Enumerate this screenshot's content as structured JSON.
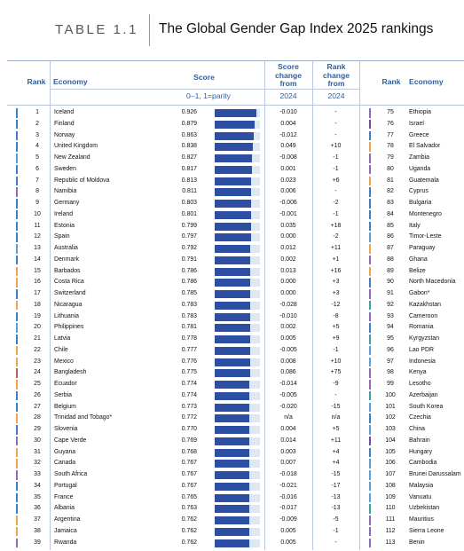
{
  "header": {
    "table_number": "TABLE 1.1",
    "title": "The Global Gender Gap Index 2025 rankings"
  },
  "columns": {
    "rank": "Rank",
    "economy": "Economy",
    "score": "Score",
    "score_change": "Score change from",
    "rank_change": "Rank change from",
    "score_sub": "0–1, 1=parity",
    "year1": "2024",
    "year2": "2024",
    "rank_right": "Rank",
    "economy_right": "Economy"
  },
  "colors": {
    "accent": "#2e5f9e",
    "bar": "#2c4fa3",
    "europe": "#3b7fc4",
    "east_asia": "#5aa0d8",
    "latam": "#f0a24a",
    "ssa": "#8d6bb5",
    "mena": "#7a4a9a",
    "ca_asia": "#3aa5a0",
    "south_asia": "#c25b5b"
  },
  "left_rows": [
    {
      "rank": "1",
      "economy": "Iceland",
      "score": "0.926",
      "sc": "-0.010",
      "rc": "-",
      "score_value": 0.926,
      "region": "europe"
    },
    {
      "rank": "2",
      "economy": "Finland",
      "score": "0.879",
      "sc": "0.004",
      "rc": "-",
      "score_value": 0.879,
      "region": "europe"
    },
    {
      "rank": "3",
      "economy": "Norway",
      "score": "0.863",
      "sc": "-0.012",
      "rc": "-",
      "score_value": 0.863,
      "region": "europe"
    },
    {
      "rank": "4",
      "economy": "United Kingdom",
      "score": "0.838",
      "sc": "0.049",
      "rc": "+10",
      "score_value": 0.838,
      "region": "europe"
    },
    {
      "rank": "5",
      "economy": "New Zealand",
      "score": "0.827",
      "sc": "-0.008",
      "rc": "-1",
      "score_value": 0.827,
      "region": "east_asia"
    },
    {
      "rank": "6",
      "economy": "Sweden",
      "score": "0.817",
      "sc": "0.001",
      "rc": "-1",
      "score_value": 0.817,
      "region": "europe"
    },
    {
      "rank": "7",
      "economy": "Republic of Moldova",
      "score": "0.813",
      "sc": "0.023",
      "rc": "+6",
      "score_value": 0.813,
      "region": "europe"
    },
    {
      "rank": "8",
      "economy": "Namibia",
      "score": "0.811",
      "sc": "0.006",
      "rc": "-",
      "score_value": 0.811,
      "region": "ssa"
    },
    {
      "rank": "9",
      "economy": "Germany",
      "score": "0.803",
      "sc": "-0.006",
      "rc": "-2",
      "score_value": 0.803,
      "region": "europe"
    },
    {
      "rank": "10",
      "economy": "Ireland",
      "score": "0.801",
      "sc": "-0.001",
      "rc": "-1",
      "score_value": 0.801,
      "region": "europe"
    },
    {
      "rank": "11",
      "economy": "Estonia",
      "score": "0.799",
      "sc": "0.035",
      "rc": "+18",
      "score_value": 0.799,
      "region": "europe"
    },
    {
      "rank": "12",
      "economy": "Spain",
      "score": "0.797",
      "sc": "0.000",
      "rc": "-2",
      "score_value": 0.797,
      "region": "europe"
    },
    {
      "rank": "13",
      "economy": "Australia",
      "score": "0.792",
      "sc": "0.012",
      "rc": "+11",
      "score_value": 0.792,
      "region": "east_asia"
    },
    {
      "rank": "14",
      "economy": "Denmark",
      "score": "0.791",
      "sc": "0.002",
      "rc": "+1",
      "score_value": 0.791,
      "region": "europe"
    },
    {
      "rank": "15",
      "economy": "Barbados",
      "score": "0.786",
      "sc": "0.013",
      "rc": "+16",
      "score_value": 0.786,
      "region": "latam"
    },
    {
      "rank": "16",
      "economy": "Costa Rica",
      "score": "0.786",
      "sc": "0.000",
      "rc": "+3",
      "score_value": 0.786,
      "region": "latam"
    },
    {
      "rank": "17",
      "economy": "Switzerland",
      "score": "0.785",
      "sc": "0.000",
      "rc": "+3",
      "score_value": 0.785,
      "region": "europe"
    },
    {
      "rank": "18",
      "economy": "Nicaragua",
      "score": "0.783",
      "sc": "-0.028",
      "rc": "-12",
      "score_value": 0.783,
      "region": "latam"
    },
    {
      "rank": "19",
      "economy": "Lithuania",
      "score": "0.783",
      "sc": "-0.010",
      "rc": "-8",
      "score_value": 0.783,
      "region": "europe"
    },
    {
      "rank": "20",
      "economy": "Philippines",
      "score": "0.781",
      "sc": "0.002",
      "rc": "+5",
      "score_value": 0.781,
      "region": "east_asia"
    },
    {
      "rank": "21",
      "economy": "Latvia",
      "score": "0.778",
      "sc": "0.005",
      "rc": "+9",
      "score_value": 0.778,
      "region": "europe"
    },
    {
      "rank": "22",
      "economy": "Chile",
      "score": "0.777",
      "sc": "-0.005",
      "rc": "-1",
      "score_value": 0.777,
      "region": "latam"
    },
    {
      "rank": "23",
      "economy": "Mexico",
      "score": "0.776",
      "sc": "0.008",
      "rc": "+10",
      "score_value": 0.776,
      "region": "latam"
    },
    {
      "rank": "24",
      "economy": "Bangladesh",
      "score": "0.775",
      "sc": "0.086",
      "rc": "+75",
      "score_value": 0.775,
      "region": "south_asia"
    },
    {
      "rank": "25",
      "economy": "Ecuador",
      "score": "0.774",
      "sc": "-0.014",
      "rc": "-9",
      "score_value": 0.774,
      "region": "latam"
    },
    {
      "rank": "26",
      "economy": "Serbia",
      "score": "0.774",
      "sc": "-0.005",
      "rc": "-",
      "score_value": 0.774,
      "region": "europe"
    },
    {
      "rank": "27",
      "economy": "Belgium",
      "score": "0.773",
      "sc": "-0.020",
      "rc": "-15",
      "score_value": 0.773,
      "region": "europe"
    },
    {
      "rank": "28",
      "economy": "Trinidad and Tobago*",
      "score": "0.772",
      "sc": "n/a",
      "rc": "n/a",
      "score_value": 0.772,
      "region": "latam"
    },
    {
      "rank": "29",
      "economy": "Slovenia",
      "score": "0.770",
      "sc": "0.004",
      "rc": "+5",
      "score_value": 0.77,
      "region": "europe"
    },
    {
      "rank": "30",
      "economy": "Cape Verde",
      "score": "0.769",
      "sc": "0.014",
      "rc": "+11",
      "score_value": 0.769,
      "region": "ssa"
    },
    {
      "rank": "31",
      "economy": "Guyana",
      "score": "0.768",
      "sc": "0.003",
      "rc": "+4",
      "score_value": 0.768,
      "region": "latam"
    },
    {
      "rank": "32",
      "economy": "Canada",
      "score": "0.767",
      "sc": "0.007",
      "rc": "+4",
      "score_value": 0.767,
      "region": "latam"
    },
    {
      "rank": "33",
      "economy": "South Africa",
      "score": "0.767",
      "sc": "-0.018",
      "rc": "-15",
      "score_value": 0.767,
      "region": "ssa"
    },
    {
      "rank": "34",
      "economy": "Portugal",
      "score": "0.767",
      "sc": "-0.021",
      "rc": "-17",
      "score_value": 0.767,
      "region": "europe"
    },
    {
      "rank": "35",
      "economy": "France",
      "score": "0.765",
      "sc": "-0.016",
      "rc": "-13",
      "score_value": 0.765,
      "region": "europe"
    },
    {
      "rank": "36",
      "economy": "Albania",
      "score": "0.763",
      "sc": "-0.017",
      "rc": "-13",
      "score_value": 0.763,
      "region": "europe"
    },
    {
      "rank": "37",
      "economy": "Argentina",
      "score": "0.762",
      "sc": "-0.009",
      "rc": "-5",
      "score_value": 0.762,
      "region": "latam"
    },
    {
      "rank": "38",
      "economy": "Jamaica",
      "score": "0.762",
      "sc": "0.005",
      "rc": "-1",
      "score_value": 0.762,
      "region": "latam"
    },
    {
      "rank": "39",
      "economy": "Rwanda",
      "score": "0.762",
      "sc": "0.005",
      "rc": "-",
      "score_value": 0.762,
      "region": "ssa"
    }
  ],
  "right_rows": [
    {
      "rank": "75",
      "economy": "Ethiopia",
      "region": "ssa"
    },
    {
      "rank": "76",
      "economy": "Israel",
      "region": "mena"
    },
    {
      "rank": "77",
      "economy": "Greece",
      "region": "europe"
    },
    {
      "rank": "78",
      "economy": "El Salvador",
      "region": "latam"
    },
    {
      "rank": "79",
      "economy": "Zambia",
      "region": "ssa"
    },
    {
      "rank": "80",
      "economy": "Uganda",
      "region": "ssa"
    },
    {
      "rank": "81",
      "economy": "Guatemala",
      "region": "latam"
    },
    {
      "rank": "82",
      "economy": "Cyprus",
      "region": "europe"
    },
    {
      "rank": "83",
      "economy": "Bulgaria",
      "region": "europe"
    },
    {
      "rank": "84",
      "economy": "Montenegro",
      "region": "europe"
    },
    {
      "rank": "85",
      "economy": "Italy",
      "region": "europe"
    },
    {
      "rank": "86",
      "economy": "Timor-Leste",
      "region": "east_asia"
    },
    {
      "rank": "87",
      "economy": "Paraguay",
      "region": "latam"
    },
    {
      "rank": "88",
      "economy": "Ghana",
      "region": "ssa"
    },
    {
      "rank": "89",
      "economy": "Belize",
      "region": "latam"
    },
    {
      "rank": "90",
      "economy": "North Macedonia",
      "region": "europe"
    },
    {
      "rank": "91",
      "economy": "Gabon*",
      "region": "ssa"
    },
    {
      "rank": "92",
      "economy": "Kazakhstan",
      "region": "ca_asia"
    },
    {
      "rank": "93",
      "economy": "Cameroon",
      "region": "ssa"
    },
    {
      "rank": "94",
      "economy": "Romania",
      "region": "europe"
    },
    {
      "rank": "95",
      "economy": "Kyrgyzstan",
      "region": "ca_asia"
    },
    {
      "rank": "96",
      "economy": "Lao PDR",
      "region": "east_asia"
    },
    {
      "rank": "97",
      "economy": "Indonesia",
      "region": "east_asia"
    },
    {
      "rank": "98",
      "economy": "Kenya",
      "region": "ssa"
    },
    {
      "rank": "99",
      "economy": "Lesotho",
      "region": "ssa"
    },
    {
      "rank": "100",
      "economy": "Azerbaijan",
      "region": "ca_asia"
    },
    {
      "rank": "101",
      "economy": "South Korea",
      "region": "east_asia"
    },
    {
      "rank": "102",
      "economy": "Czechia",
      "region": "europe"
    },
    {
      "rank": "103",
      "economy": "China",
      "region": "east_asia"
    },
    {
      "rank": "104",
      "economy": "Bahrain",
      "region": "mena"
    },
    {
      "rank": "105",
      "economy": "Hungary",
      "region": "europe"
    },
    {
      "rank": "106",
      "economy": "Cambodia",
      "region": "east_asia"
    },
    {
      "rank": "107",
      "economy": "Brunei Darussalam",
      "region": "east_asia"
    },
    {
      "rank": "108",
      "economy": "Malaysia",
      "region": "east_asia"
    },
    {
      "rank": "109",
      "economy": "Vanuatu",
      "region": "east_asia"
    },
    {
      "rank": "110",
      "economy": "Uzbekistan",
      "region": "ca_asia"
    },
    {
      "rank": "111",
      "economy": "Mauritius",
      "region": "ssa"
    },
    {
      "rank": "112",
      "economy": "Sierra Leone",
      "region": "ssa"
    },
    {
      "rank": "113",
      "economy": "Benin",
      "region": "ssa"
    }
  ]
}
